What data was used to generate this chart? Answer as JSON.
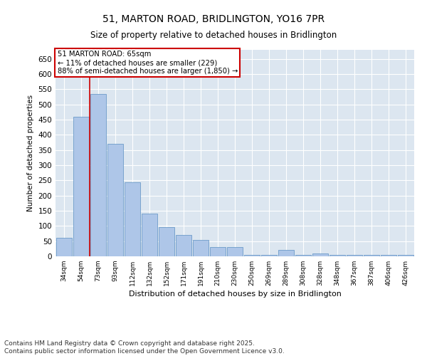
{
  "title": "51, MARTON ROAD, BRIDLINGTON, YO16 7PR",
  "subtitle": "Size of property relative to detached houses in Bridlington",
  "xlabel": "Distribution of detached houses by size in Bridlington",
  "ylabel": "Number of detached properties",
  "categories": [
    "34sqm",
    "54sqm",
    "73sqm",
    "93sqm",
    "112sqm",
    "132sqm",
    "152sqm",
    "171sqm",
    "191sqm",
    "210sqm",
    "230sqm",
    "250sqm",
    "269sqm",
    "289sqm",
    "308sqm",
    "328sqm",
    "348sqm",
    "367sqm",
    "387sqm",
    "406sqm",
    "426sqm"
  ],
  "values": [
    60,
    460,
    535,
    370,
    245,
    140,
    95,
    70,
    55,
    30,
    30,
    5,
    5,
    20,
    5,
    10,
    5,
    5,
    5,
    5,
    5
  ],
  "bar_color": "#aec6e8",
  "bar_edge_color": "#5a8fc2",
  "vline_pos": 1.5,
  "vline_color": "#cc0000",
  "annotation_text": "51 MARTON ROAD: 65sqm\n← 11% of detached houses are smaller (229)\n88% of semi-detached houses are larger (1,850) →",
  "annotation_box_color": "#cc0000",
  "ylim": [
    0,
    680
  ],
  "yticks": [
    0,
    50,
    100,
    150,
    200,
    250,
    300,
    350,
    400,
    450,
    500,
    550,
    600,
    650
  ],
  "background_color": "#dce6f0",
  "footer_line1": "Contains HM Land Registry data © Crown copyright and database right 2025.",
  "footer_line2": "Contains public sector information licensed under the Open Government Licence v3.0.",
  "footnote_fontsize": 6.5,
  "title_fontsize": 10,
  "subtitle_fontsize": 8.5
}
